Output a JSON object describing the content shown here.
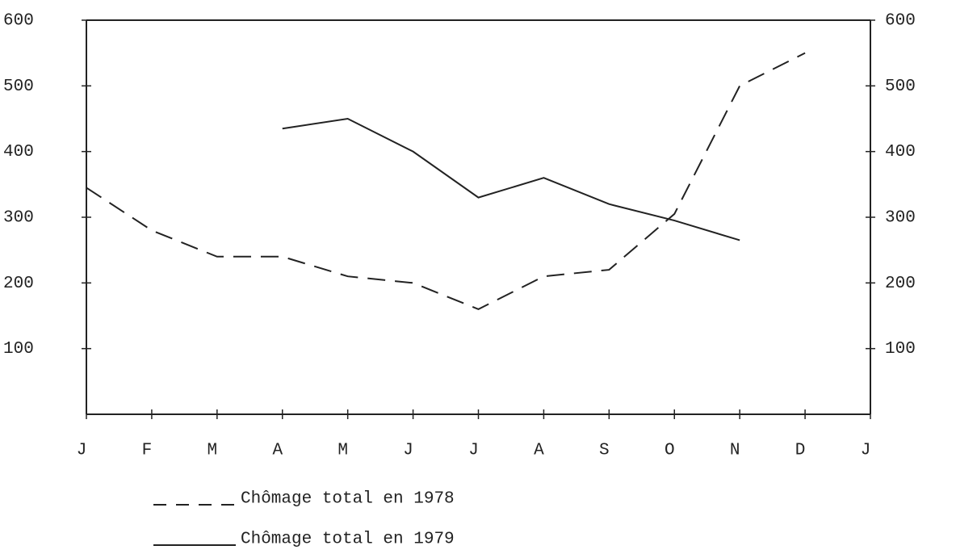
{
  "chart_data": {
    "type": "line",
    "categories": [
      "J",
      "F",
      "M",
      "A",
      "M",
      "J",
      "J",
      "A",
      "S",
      "O",
      "N",
      "D",
      "J"
    ],
    "series": [
      {
        "name": "Chômage total en 1978",
        "color": "#222222",
        "dash": true,
        "values": [
          345,
          280,
          240,
          240,
          210,
          200,
          160,
          210,
          220,
          305,
          500,
          550,
          null
        ]
      },
      {
        "name": "Chômage total en 1979",
        "color": "#222222",
        "dash": false,
        "values": [
          null,
          null,
          null,
          435,
          450,
          400,
          330,
          360,
          320,
          295,
          265,
          null,
          null
        ]
      }
    ],
    "ylim": [
      0,
      600
    ],
    "yticks": [
      100,
      200,
      300,
      400,
      500,
      600
    ],
    "y2lim": [
      0,
      600
    ],
    "y2ticks": [
      100,
      200,
      300,
      400,
      500,
      600
    ]
  }
}
